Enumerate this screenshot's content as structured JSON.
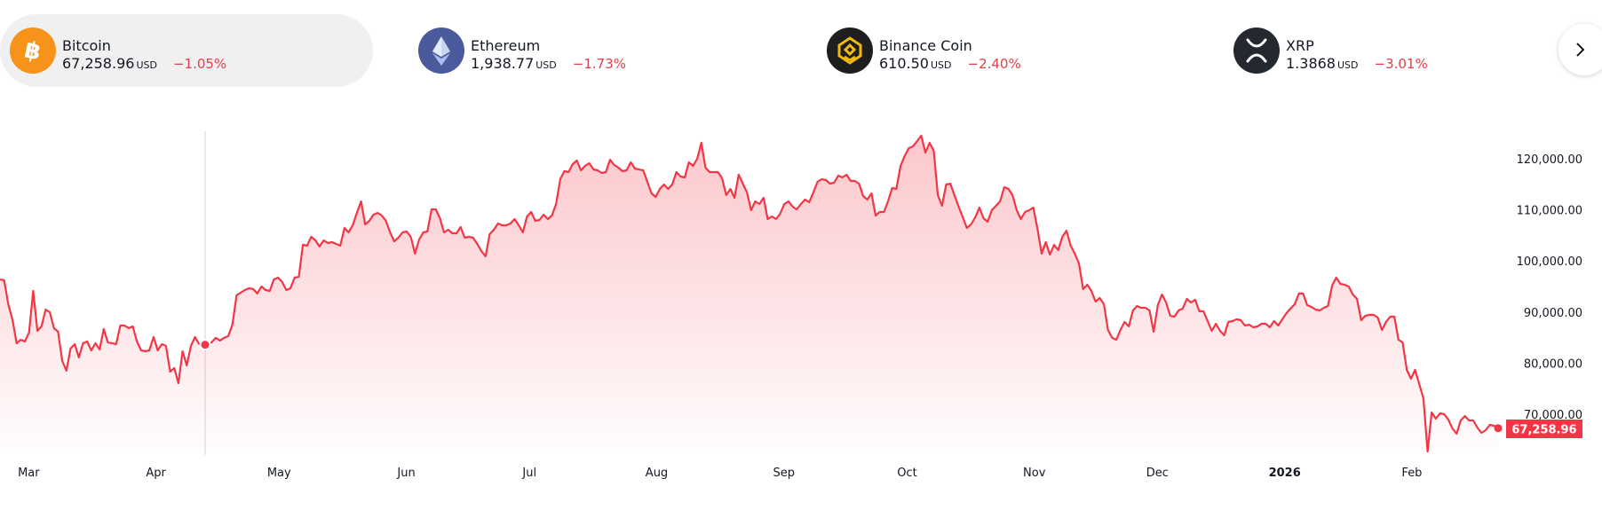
{
  "tickers": [
    {
      "name": "Bitcoin",
      "price": "67,258.96",
      "currency": "USD",
      "change": "−1.05%",
      "icon": "bitcoin-icon",
      "color": "#f7931a",
      "active": true
    },
    {
      "name": "Ethereum",
      "price": "1,938.77",
      "currency": "USD",
      "change": "−1.73%",
      "icon": "ethereum-icon",
      "color": "#4b5a9c"
    },
    {
      "name": "Binance Coin",
      "price": "610.50",
      "currency": "USD",
      "change": "−2.40%",
      "icon": "binance-icon",
      "color": "#1e1e1e"
    },
    {
      "name": "XRP",
      "price": "1.3868",
      "currency": "USD",
      "change": "−3.01%",
      "icon": "xrp-icon",
      "color": "#23292f"
    }
  ],
  "next_button": {
    "icon": "chevron-right-icon"
  },
  "colors": {
    "line": "#f23645",
    "negative": "#e03e4a"
  },
  "chart_data": {
    "type": "area",
    "title": "",
    "xlabel": "",
    "ylabel": "",
    "x_range_days": [
      0,
      365
    ],
    "ylim": [
      61000,
      125000
    ],
    "y_ticks": [
      {
        "value": 120000,
        "label": "120,000.00"
      },
      {
        "value": 110000,
        "label": "110,000.00"
      },
      {
        "value": 100000,
        "label": "100,000.00"
      },
      {
        "value": 90000,
        "label": "90,000.00"
      },
      {
        "value": 80000,
        "label": "80,000.00"
      },
      {
        "value": 70000,
        "label": "70,000.00"
      }
    ],
    "x_ticks": [
      {
        "day": 7,
        "label": "Mar"
      },
      {
        "day": 38,
        "label": "Apr"
      },
      {
        "day": 68,
        "label": "May"
      },
      {
        "day": 99,
        "label": "Jun"
      },
      {
        "day": 129,
        "label": "Jul"
      },
      {
        "day": 160,
        "label": "Aug"
      },
      {
        "day": 191,
        "label": "Sep"
      },
      {
        "day": 221,
        "label": "Oct"
      },
      {
        "day": 252,
        "label": "Nov"
      },
      {
        "day": 282,
        "label": "Dec"
      },
      {
        "day": 313,
        "label": "2026",
        "bold": true
      },
      {
        "day": 344,
        "label": "Feb"
      }
    ],
    "last_price_label": "67,258.96",
    "hover_day": 50,
    "series": [
      {
        "name": "Bitcoin",
        "values": [
          96390,
          96200,
          91530,
          88580,
          83890,
          84590,
          84240,
          85970,
          94130,
          86320,
          87190,
          90490,
          89970,
          86840,
          86150,
          80420,
          78510,
          82850,
          83720,
          81120,
          83890,
          84240,
          82500,
          83890,
          82680,
          86670,
          84070,
          83900,
          83720,
          87360,
          87360,
          86840,
          87190,
          84240,
          82500,
          82330,
          82500,
          85110,
          82500,
          83720,
          83370,
          78340,
          79030,
          76080,
          82330,
          79550,
          83370,
          85110,
          83720,
          83600,
          83720,
          84070,
          84940,
          84420,
          84940,
          85280,
          87540,
          93270,
          93790,
          94300,
          94660,
          94490,
          93620,
          95000,
          94310,
          94130,
          96390,
          96740,
          95870,
          94310,
          94660,
          96740,
          96910,
          103160,
          102990,
          104720,
          104030,
          102810,
          104030,
          103510,
          103680,
          103330,
          102990,
          106460,
          105590,
          106980,
          109410,
          111670,
          107150,
          107850,
          109060,
          109410,
          108890,
          107850,
          105590,
          103850,
          104550,
          105590,
          105760,
          104720,
          101420,
          104200,
          105590,
          105760,
          110100,
          110100,
          108370,
          105590,
          106110,
          105420,
          105420,
          106630,
          104550,
          104720,
          104550,
          103330,
          101940,
          100900,
          105240,
          106110,
          107330,
          106980,
          106980,
          107330,
          108200,
          106980,
          105590,
          108720,
          109580,
          107850,
          108020,
          109060,
          108200,
          108890,
          111150,
          116010,
          117570,
          117400,
          118960,
          119650,
          117740,
          118610,
          119130,
          117920,
          117740,
          117220,
          117400,
          119830,
          118790,
          118260,
          117570,
          117740,
          119310,
          118090,
          117900,
          117740,
          115490,
          113230,
          112540,
          114100,
          114970,
          114100,
          114970,
          117400,
          116530,
          116360,
          119310,
          118610,
          120000,
          123120,
          118260,
          117400,
          117400,
          117400,
          116190,
          112880,
          114100,
          112360,
          116880,
          115140,
          113400,
          109930,
          111670,
          111150,
          112360,
          108200,
          108720,
          108200,
          109240,
          111150,
          111670,
          110620,
          110100,
          111150,
          112010,
          111500,
          113400,
          115490,
          116010,
          115840,
          115140,
          115310,
          116700,
          116360,
          116880,
          115660,
          115660,
          115140,
          112710,
          112010,
          113230,
          108890,
          109580,
          109580,
          111670,
          114270,
          114100,
          118610,
          120520,
          122080,
          122430,
          123470,
          124510,
          121220,
          123120,
          121560,
          112880,
          110800,
          114970,
          115140,
          112880,
          110620,
          108540,
          106460,
          107150,
          108540,
          110450,
          108370,
          107680,
          109930,
          110800,
          111670,
          114440,
          114100,
          112880,
          109930,
          108200,
          109580,
          109930,
          110450,
          106290,
          101420,
          103680,
          101250,
          103160,
          102120,
          104720,
          105940,
          102990,
          101420,
          99510,
          94490,
          95350,
          94130,
          92050,
          92740,
          91530,
          86490,
          84940,
          84590,
          86490,
          88060,
          87190,
          90320,
          91180,
          90840,
          90840,
          90320,
          86150,
          91360,
          93440,
          91880,
          89270,
          89100,
          90320,
          90670,
          92570,
          91880,
          92400,
          90150,
          90150,
          88230,
          86320,
          87710,
          86320,
          85450,
          88060,
          88230,
          88580,
          88410,
          87360,
          87540,
          87020,
          87190,
          87710,
          87710,
          87020,
          88230,
          87360,
          88580,
          89790,
          90670,
          91530,
          93620,
          93620,
          91360,
          91010,
          90490,
          90320,
          90840,
          91180,
          95170,
          96740,
          95520,
          95350,
          95000,
          93440,
          92570,
          88410,
          89270,
          89450,
          89450,
          88930,
          86490,
          88060,
          89100,
          89100,
          84590,
          84070,
          78680,
          76950,
          78680,
          75900,
          73130,
          62710,
          70350,
          69140,
          70180,
          70000,
          68970,
          67230,
          66180,
          68790,
          69660,
          68790,
          68790,
          67400,
          66360,
          66880,
          67920,
          67750,
          67258.96
        ]
      }
    ]
  }
}
